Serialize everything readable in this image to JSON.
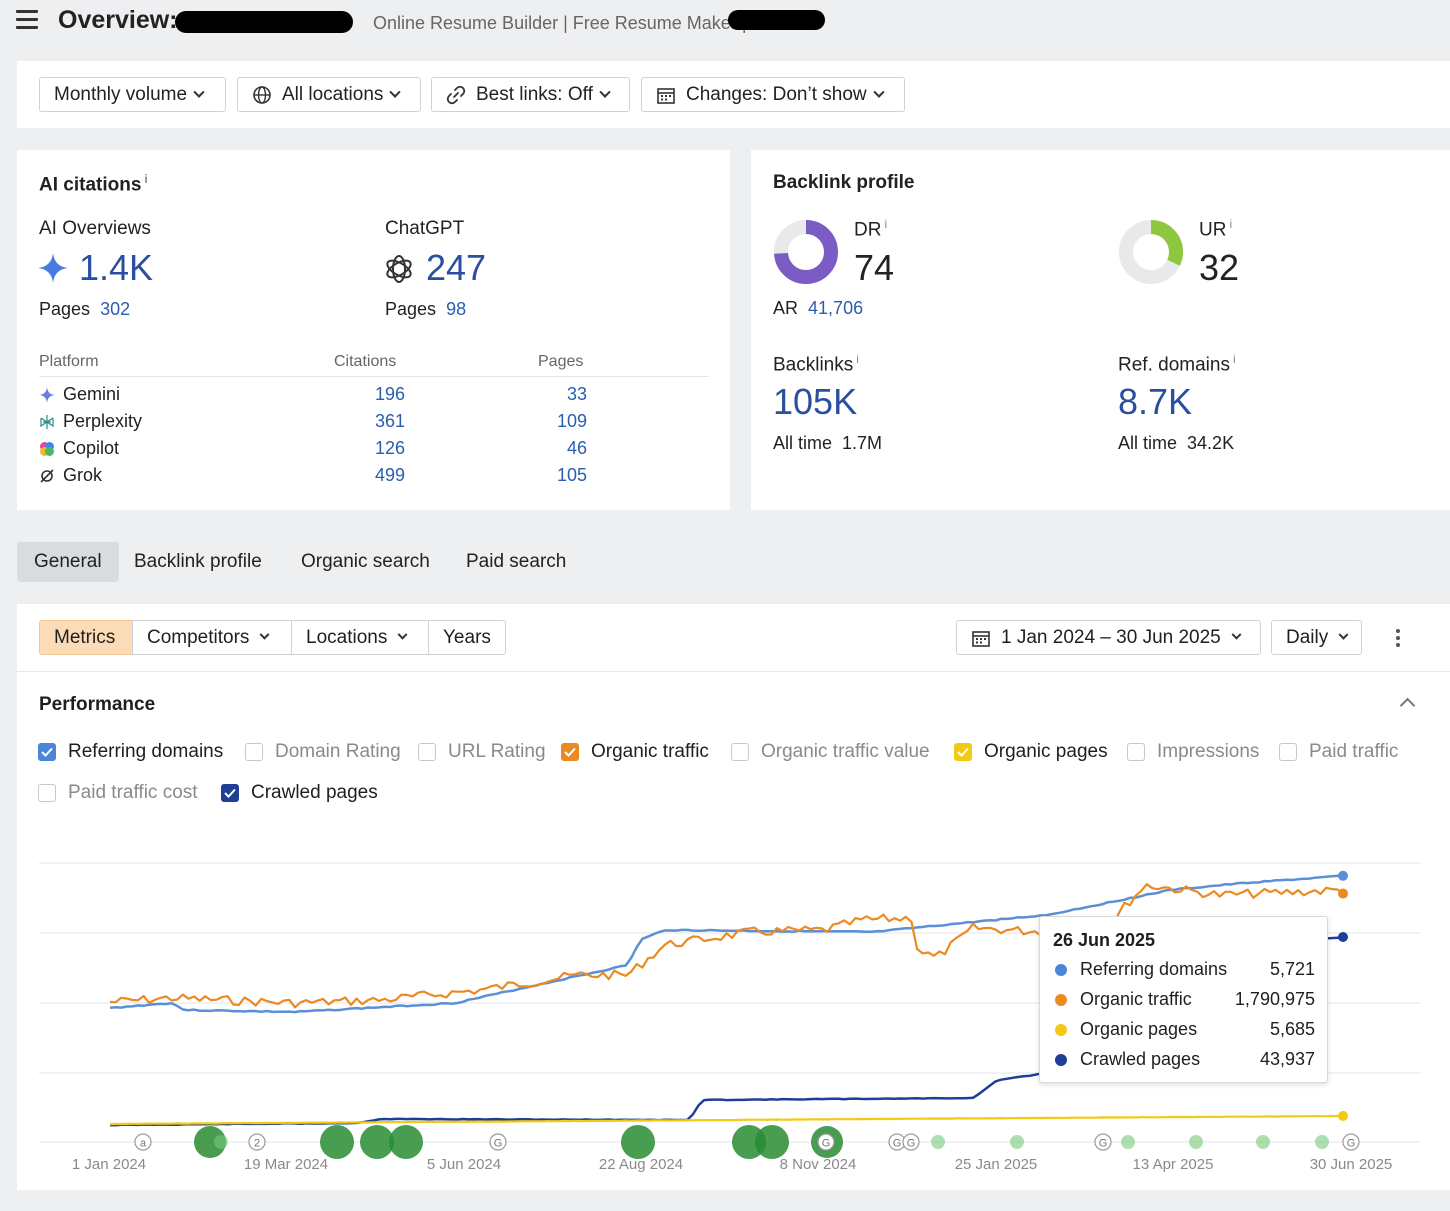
{
  "header": {
    "title": "Overview:",
    "subtitle": "Online Resume Builder | Free Resume Maker | Enhancv"
  },
  "toolbar": {
    "volume": "Monthly volume",
    "locations": "All locations",
    "best_links": "Best links: Off",
    "changes": "Changes: Don’t show"
  },
  "ai_citations": {
    "title": "AI citations",
    "info": "i",
    "ai_overviews": {
      "label": "AI Overviews",
      "value": "1.4K",
      "pages_label": "Pages",
      "pages": "302"
    },
    "chatgpt": {
      "label": "ChatGPT",
      "value": "247",
      "pages_label": "Pages",
      "pages": "98"
    },
    "table": {
      "headers": [
        "Platform",
        "Citations",
        "Pages"
      ],
      "rows": [
        {
          "name": "Gemini",
          "citations": "196",
          "pages": "33",
          "icon": "gemini-icon"
        },
        {
          "name": "Perplexity",
          "citations": "361",
          "pages": "109",
          "icon": "perplexity-icon"
        },
        {
          "name": "Copilot",
          "citations": "126",
          "pages": "46",
          "icon": "copilot-icon"
        },
        {
          "name": "Grok",
          "citations": "499",
          "pages": "105",
          "icon": "grok-icon"
        }
      ]
    }
  },
  "backlink_profile": {
    "title": "Backlink profile",
    "dr": {
      "label": "DR",
      "value": "74",
      "fraction": 0.74,
      "color": "#7b5cc4"
    },
    "ur": {
      "label": "UR",
      "value": "32",
      "fraction": 0.32,
      "color": "#8dc63f"
    },
    "ar": {
      "label": "AR",
      "value": "41,706"
    },
    "backlinks": {
      "label": "Backlinks",
      "value": "105K",
      "all_time_label": "All time",
      "all_time": "1.7M"
    },
    "ref_domains": {
      "label": "Ref. domains",
      "value": "8.7K",
      "all_time_label": "All time",
      "all_time": "34.2K"
    }
  },
  "tabs": [
    "General",
    "Backlink profile",
    "Organic search",
    "Paid search"
  ],
  "lower_toolbar": {
    "metrics": "Metrics",
    "competitors": "Competitors",
    "locations": "Locations",
    "years": "Years",
    "date_range": "1 Jan 2024 – 30 Jun 2025",
    "interval": "Daily"
  },
  "performance": {
    "title": "Performance",
    "checkboxes": [
      {
        "label": "Referring domains",
        "checked": true,
        "color": "#4a86d6"
      },
      {
        "label": "Domain Rating",
        "checked": false
      },
      {
        "label": "URL Rating",
        "checked": false
      },
      {
        "label": "Organic traffic",
        "checked": true,
        "color": "#ec8a22"
      },
      {
        "label": "Organic traffic value",
        "checked": false
      },
      {
        "label": "Organic pages",
        "checked": true,
        "color": "#f2c915"
      },
      {
        "label": "Impressions",
        "checked": false
      },
      {
        "label": "Paid traffic",
        "checked": false
      },
      {
        "label": "Paid traffic cost",
        "checked": false
      },
      {
        "label": "Crawled pages",
        "checked": true,
        "color": "#1f3f95"
      }
    ]
  },
  "chart_data": {
    "type": "line",
    "x_ticks": [
      "1 Jan 2024",
      "19 Mar 2024",
      "5 Jun 2024",
      "22 Aug 2024",
      "8 Nov 2024",
      "25 Jan 2025",
      "13 Apr 2025",
      "30 Jun 2025"
    ],
    "grid": true,
    "series": [
      {
        "name": "Referring domains",
        "color": "#5b8fd6"
      },
      {
        "name": "Organic traffic",
        "color": "#ec8a22"
      },
      {
        "name": "Organic pages",
        "color": "#f2c915"
      },
      {
        "name": "Crawled pages",
        "color": "#1f3f95"
      }
    ],
    "annotation_markers": [
      "a",
      "2",
      "G",
      "G",
      "G",
      "G",
      "G",
      "G"
    ],
    "tooltip": {
      "date": "26 Jun 2025",
      "rows": [
        {
          "name": "Referring domains",
          "value": "5,721",
          "color": "#4a86d6"
        },
        {
          "name": "Organic traffic",
          "value": "1,790,975",
          "color": "#ec8a22"
        },
        {
          "name": "Organic pages",
          "value": "5,685",
          "color": "#f2c915"
        },
        {
          "name": "Crawled pages",
          "value": "43,937",
          "color": "#1f3f95"
        }
      ]
    }
  }
}
